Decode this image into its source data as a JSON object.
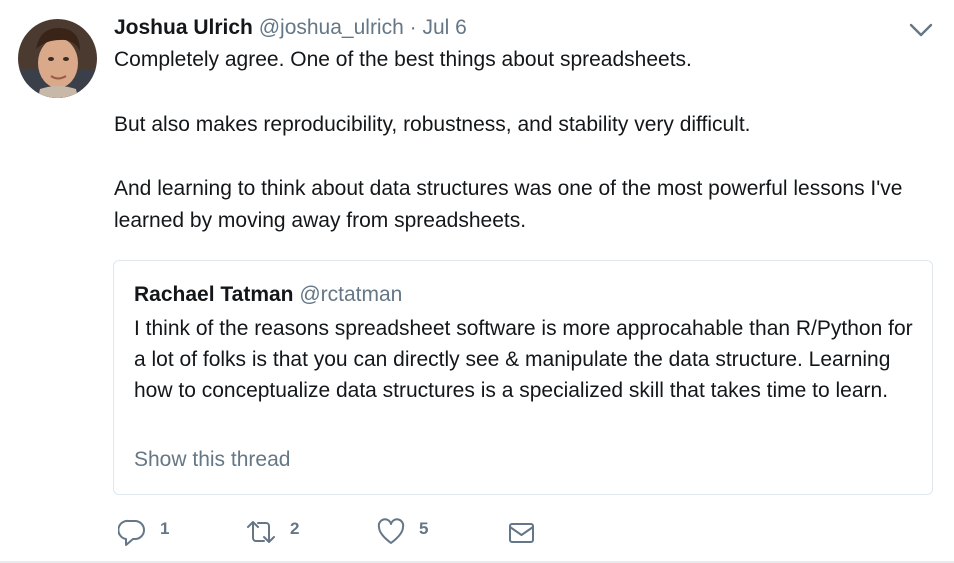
{
  "tweet": {
    "author": {
      "name": "Joshua Ulrich",
      "handle": "@joshua_ulrich",
      "avatar_icon": "avatar-photo"
    },
    "separator": "·",
    "date": "Jul 6",
    "paragraphs": [
      "Completely agree. One of the best things about spreadsheets.",
      "But also makes reproducibility, robustness, and stability very difficult.",
      "And learning to think about data structures was one of the most powerful lessons I've learned by moving away from spreadsheets."
    ],
    "caret_icon": "chevron-down-icon"
  },
  "quoted_tweet": {
    "name": "Rachael Tatman",
    "handle": "@rctatman",
    "text": "I think of the reasons spreadsheet software is more approcahable than R/Python for a lot of folks is that you can directly see & manipulate the data structure. Learning how to conceptualize data structures is a specialized skill that takes time to learn.",
    "show_thread": "Show this thread"
  },
  "actions": {
    "reply": {
      "icon": "reply-icon",
      "count": "1"
    },
    "retweet": {
      "icon": "retweet-icon",
      "count": "2"
    },
    "like": {
      "icon": "heart-icon",
      "count": "5"
    },
    "dm": {
      "icon": "envelope-icon"
    }
  },
  "colors": {
    "text": "#14171a",
    "muted": "#657786",
    "border": "#e1e8ed"
  }
}
